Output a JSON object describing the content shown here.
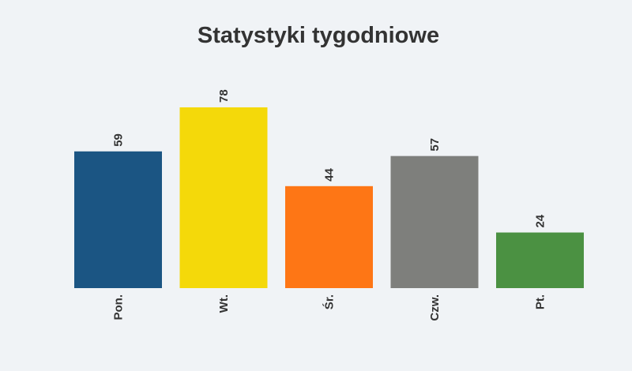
{
  "chart_data": {
    "type": "bar",
    "title": "Statystyki tygodniowe",
    "categories": [
      "Pon.",
      "Wt.",
      "Śr.",
      "Czw.",
      "Pt."
    ],
    "values": [
      59,
      78,
      44,
      57,
      24
    ],
    "colors": [
      "#1b5583",
      "#f4d90a",
      "#fe7615",
      "#7e7f7c",
      "#4b9142"
    ],
    "xlabel": "",
    "ylabel": "",
    "ylim": [
      0,
      100
    ],
    "grid": false,
    "data_labels": true,
    "background": "#f0f3f6"
  }
}
